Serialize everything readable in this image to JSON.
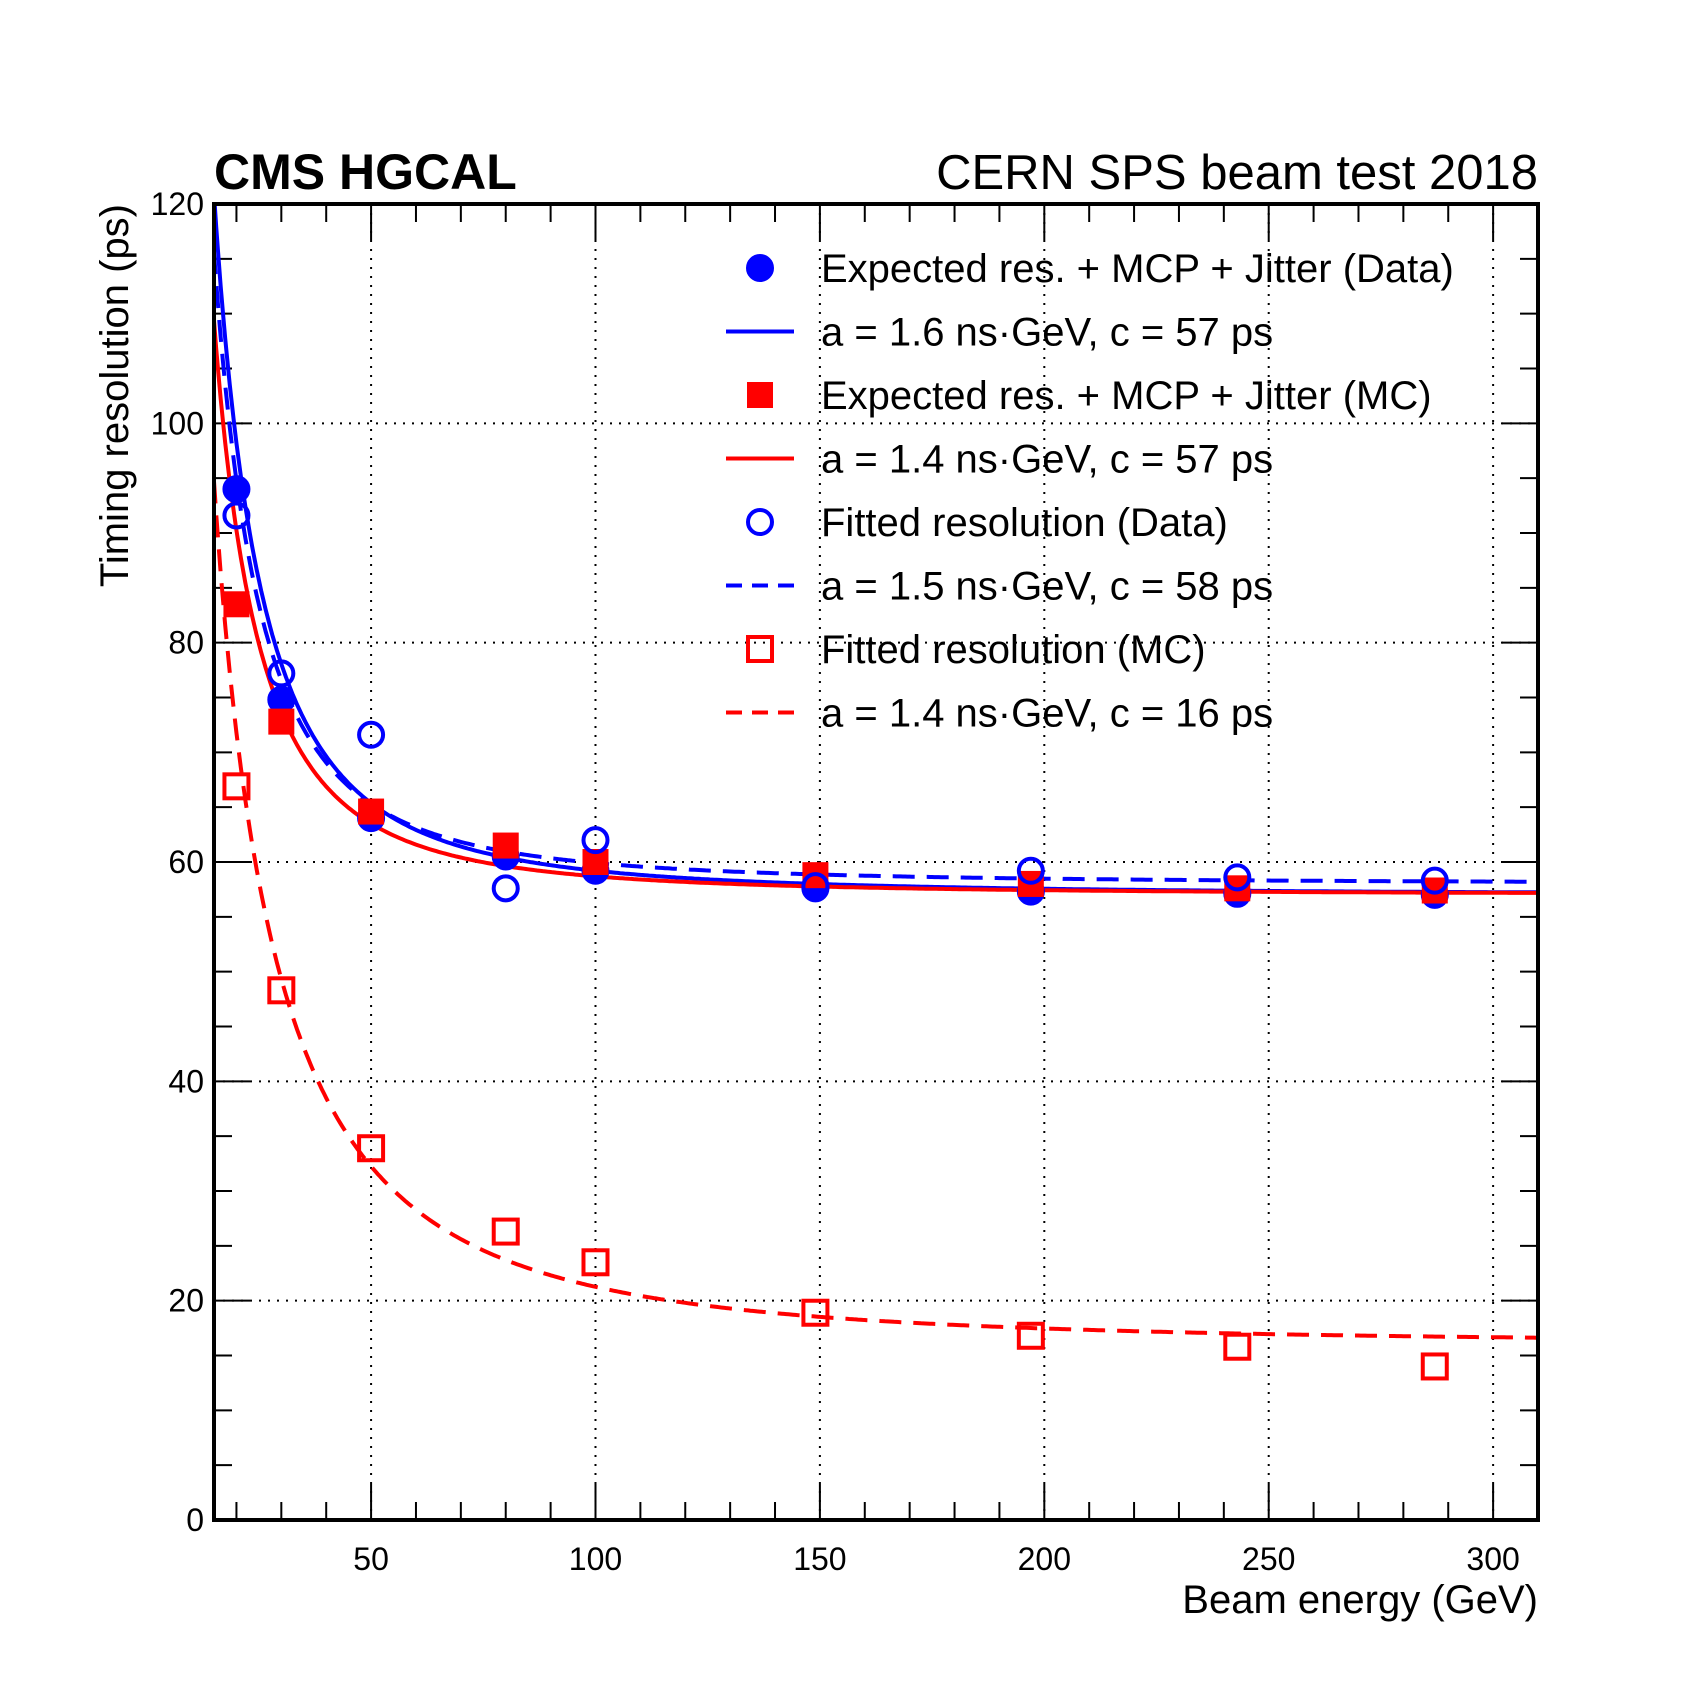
{
  "chart_data": {
    "type": "scatter",
    "experiment_label": "CMS HGCAL",
    "condition_label": "CERN SPS beam test 2018",
    "xlabel": "Beam energy (GeV)",
    "ylabel": "Timing resolution (ps)",
    "xlim": [
      15,
      310
    ],
    "ylim": [
      0,
      120
    ],
    "grid": true,
    "legend_position": "top-right",
    "x_ticks": [
      50,
      100,
      150,
      200,
      250,
      300
    ],
    "y_ticks": [
      0,
      20,
      40,
      60,
      80,
      100,
      120
    ],
    "x_tick_labels": [
      "50",
      "100",
      "150",
      "200",
      "250",
      "300"
    ],
    "y_tick_labels": [
      "0",
      "20",
      "40",
      "60",
      "80",
      "100",
      "120"
    ],
    "series": [
      {
        "name": "Expected res. + MCP + Jitter (Data)",
        "kind": "points",
        "marker": "filled-circle",
        "color": "#0000ff",
        "x": [
          20,
          30,
          50,
          80,
          100,
          149,
          197,
          243,
          287
        ],
        "y": [
          94.0,
          74.8,
          64.0,
          60.5,
          59.2,
          57.6,
          57.3,
          57.1,
          57.0
        ]
      },
      {
        "name": "a = 1.6 ns·GeV, c = 57 ps",
        "kind": "fit",
        "style": "solid",
        "color": "#0000ff",
        "a_ns_GeV": 1.6,
        "c_ps": 57
      },
      {
        "name": "Expected res. + MCP + Jitter (MC)",
        "kind": "points",
        "marker": "filled-square",
        "color": "#ff0000",
        "x": [
          20,
          30,
          50,
          80,
          100,
          149,
          197,
          243,
          287
        ],
        "y": [
          83.5,
          72.8,
          64.6,
          61.5,
          60.0,
          58.8,
          58.0,
          57.6,
          57.4
        ]
      },
      {
        "name": "a = 1.4 ns·GeV, c = 57 ps",
        "kind": "fit",
        "style": "solid",
        "color": "#ff0000",
        "a_ns_GeV": 1.4,
        "c_ps": 57
      },
      {
        "name": "Fitted resolution (Data)",
        "kind": "points",
        "marker": "open-circle",
        "color": "#0000ff",
        "x": [
          20,
          30,
          50,
          80,
          100,
          149,
          197,
          243,
          287
        ],
        "y": [
          91.6,
          77.2,
          71.6,
          57.6,
          62.0,
          57.8,
          59.2,
          58.6,
          58.3
        ]
      },
      {
        "name": "a = 1.5 ns·GeV, c = 58 ps",
        "kind": "fit",
        "style": "dashed",
        "color": "#0000ff",
        "a_ns_GeV": 1.5,
        "c_ps": 58
      },
      {
        "name": "Fitted resolution (MC)",
        "kind": "points",
        "marker": "open-square",
        "color": "#ff0000",
        "x": [
          20,
          30,
          50,
          80,
          100,
          149,
          197,
          243,
          287
        ],
        "y": [
          66.9,
          48.3,
          33.9,
          26.3,
          23.5,
          18.9,
          16.8,
          15.8,
          14.0
        ]
      },
      {
        "name": "a = 1.4 ns·GeV, c = 16 ps",
        "kind": "fit",
        "style": "dashed",
        "color": "#ff0000",
        "a_ns_GeV": 1.4,
        "c_ps": 16
      }
    ]
  }
}
